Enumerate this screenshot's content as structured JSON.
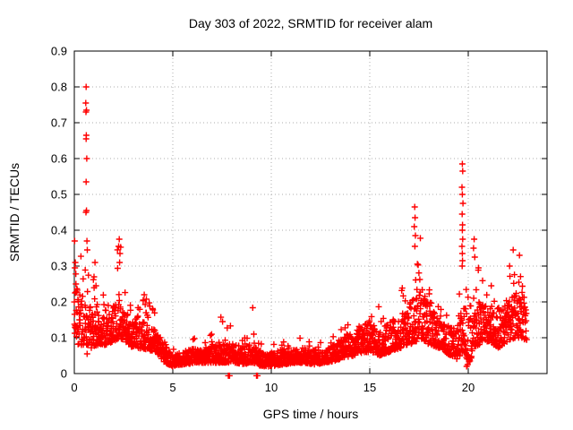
{
  "title": "Day 303 of 2022, SRMTID for receiver alam",
  "axes": {
    "xlabel": "GPS time / hours",
    "ylabel": "SRMTID / TECUs",
    "x_ticks": [
      [
        0,
        "0"
      ],
      [
        5,
        "5"
      ],
      [
        10,
        "10"
      ],
      [
        15,
        "15"
      ],
      [
        20,
        "20"
      ]
    ],
    "y_ticks": [
      [
        0,
        "0"
      ],
      [
        0.1,
        "0.1"
      ],
      [
        0.2,
        "0.2"
      ],
      [
        0.3,
        "0.3"
      ],
      [
        0.4,
        "0.4"
      ],
      [
        0.5,
        "0.5"
      ],
      [
        0.6,
        "0.6"
      ],
      [
        0.7,
        "0.7"
      ],
      [
        0.8,
        "0.8"
      ],
      [
        0.9,
        "0.9"
      ]
    ],
    "x_range": [
      0,
      24
    ],
    "y_range": [
      0,
      0.9
    ]
  },
  "colors": {
    "marker": "#ff0000",
    "grid": "#adadad",
    "frame": "#000000",
    "text": "#000000",
    "background": "#ffffff"
  },
  "chart_data": {
    "type": "scatter",
    "title": "Day 303 of 2022, SRMTID for receiver alam",
    "xlabel": "GPS time / hours",
    "ylabel": "SRMTID / TECUs",
    "xlim": [
      0,
      24
    ],
    "ylim": [
      0,
      0.9
    ],
    "grid": true,
    "grid_style": "dotted",
    "legend": "none",
    "marker": "plus",
    "marker_size_px": 7,
    "series_color": "#ff0000",
    "n_points": 2400,
    "x_start": 0,
    "x_end": 22.97,
    "seed": 303,
    "tail_fraction": 0.08,
    "envelope_note": "columns: [hour, typical_low, typical_high, peak] read from plot; dense band lies mostly in [low,high], occasional excursions up to peak",
    "envelope": [
      [
        0.0,
        0.08,
        0.25,
        0.37
      ],
      [
        0.4,
        0.08,
        0.21,
        0.33
      ],
      [
        0.8,
        0.07,
        0.19,
        0.3
      ],
      [
        1.2,
        0.08,
        0.17,
        0.25
      ],
      [
        1.6,
        0.08,
        0.15,
        0.22
      ],
      [
        2.0,
        0.09,
        0.19,
        0.3
      ],
      [
        2.3,
        0.1,
        0.22,
        0.38
      ],
      [
        2.6,
        0.09,
        0.17,
        0.27
      ],
      [
        3.0,
        0.07,
        0.14,
        0.2
      ],
      [
        3.5,
        0.07,
        0.15,
        0.22
      ],
      [
        4.1,
        0.06,
        0.12,
        0.175
      ],
      [
        4.6,
        0.03,
        0.08,
        0.11
      ],
      [
        5.0,
        0.02,
        0.05,
        0.07
      ],
      [
        5.5,
        0.025,
        0.06,
        0.1
      ],
      [
        6.2,
        0.03,
        0.07,
        0.13
      ],
      [
        6.6,
        0.03,
        0.06,
        0.1
      ],
      [
        7.1,
        0.03,
        0.08,
        0.15
      ],
      [
        7.7,
        0.03,
        0.08,
        0.165
      ],
      [
        8.2,
        0.03,
        0.08,
        0.12
      ],
      [
        8.7,
        0.025,
        0.07,
        0.1
      ],
      [
        9.1,
        0.03,
        0.09,
        0.2
      ],
      [
        9.5,
        0.02,
        0.06,
        0.09
      ],
      [
        10.0,
        0.02,
        0.055,
        0.08
      ],
      [
        10.6,
        0.025,
        0.06,
        0.09
      ],
      [
        11.2,
        0.03,
        0.065,
        0.1
      ],
      [
        11.7,
        0.03,
        0.07,
        0.11
      ],
      [
        12.2,
        0.025,
        0.065,
        0.115
      ],
      [
        12.7,
        0.03,
        0.06,
        0.1
      ],
      [
        13.2,
        0.035,
        0.08,
        0.12
      ],
      [
        13.7,
        0.045,
        0.1,
        0.14
      ],
      [
        14.2,
        0.05,
        0.12,
        0.19
      ],
      [
        14.7,
        0.06,
        0.14,
        0.23
      ],
      [
        15.1,
        0.06,
        0.15,
        0.25
      ],
      [
        15.5,
        0.05,
        0.12,
        0.18
      ],
      [
        16.0,
        0.06,
        0.14,
        0.22
      ],
      [
        16.5,
        0.07,
        0.16,
        0.23
      ],
      [
        17.0,
        0.08,
        0.18,
        0.31
      ],
      [
        17.35,
        0.09,
        0.24,
        0.4
      ],
      [
        17.7,
        0.09,
        0.25,
        0.38
      ],
      [
        18.1,
        0.08,
        0.19,
        0.28
      ],
      [
        18.6,
        0.07,
        0.15,
        0.21
      ],
      [
        19.1,
        0.05,
        0.13,
        0.19
      ],
      [
        19.45,
        0.04,
        0.12,
        0.18
      ],
      [
        19.75,
        0.06,
        0.2,
        0.33
      ],
      [
        20.05,
        0.03,
        0.14,
        0.24
      ],
      [
        20.35,
        0.07,
        0.21,
        0.33
      ],
      [
        20.75,
        0.09,
        0.2,
        0.27
      ],
      [
        21.1,
        0.09,
        0.18,
        0.26
      ],
      [
        21.5,
        0.07,
        0.16,
        0.24
      ],
      [
        22.0,
        0.09,
        0.2,
        0.3
      ],
      [
        22.4,
        0.1,
        0.23,
        0.33
      ],
      [
        22.75,
        0.1,
        0.22,
        0.31
      ],
      [
        22.97,
        0.09,
        0.19,
        0.27
      ]
    ],
    "outliers_note": "notable individual points read from plot as [hour, TECUs]",
    "outliers": [
      [
        0.6,
        0.8
      ],
      [
        0.58,
        0.755
      ],
      [
        0.62,
        0.735
      ],
      [
        0.59,
        0.73
      ],
      [
        0.61,
        0.665
      ],
      [
        0.6,
        0.655
      ],
      [
        0.63,
        0.6
      ],
      [
        0.6,
        0.535
      ],
      [
        0.62,
        0.455
      ],
      [
        0.59,
        0.45
      ],
      [
        0.64,
        0.37
      ],
      [
        0.66,
        0.345
      ],
      [
        0.65,
        0.055
      ],
      [
        0.02,
        0.37
      ],
      [
        0.05,
        0.31
      ],
      [
        0.03,
        0.295
      ],
      [
        0.08,
        0.25
      ],
      [
        0.04,
        0.225
      ],
      [
        1.05,
        0.31
      ],
      [
        1.0,
        0.27
      ],
      [
        1.1,
        0.245
      ],
      [
        2.28,
        0.375
      ],
      [
        2.25,
        0.355
      ],
      [
        2.32,
        0.335
      ],
      [
        2.3,
        0.31
      ],
      [
        3.55,
        0.22
      ],
      [
        3.5,
        0.205
      ],
      [
        17.28,
        0.465
      ],
      [
        17.3,
        0.435
      ],
      [
        17.26,
        0.41
      ],
      [
        17.32,
        0.385
      ],
      [
        17.29,
        0.355
      ],
      [
        19.7,
        0.585
      ],
      [
        19.72,
        0.565
      ],
      [
        19.68,
        0.52
      ],
      [
        19.7,
        0.5
      ],
      [
        19.73,
        0.475
      ],
      [
        19.69,
        0.445
      ],
      [
        19.71,
        0.415
      ],
      [
        19.7,
        0.4
      ],
      [
        19.72,
        0.375
      ],
      [
        19.68,
        0.355
      ],
      [
        19.7,
        0.335
      ],
      [
        19.71,
        0.315
      ],
      [
        19.69,
        0.3
      ],
      [
        19.92,
        0.02
      ],
      [
        19.97,
        0.025
      ],
      [
        20.3,
        0.375
      ],
      [
        20.27,
        0.35
      ],
      [
        20.33,
        0.325
      ],
      [
        22.1,
        0.3
      ],
      [
        22.28,
        0.345
      ],
      [
        22.6,
        0.33
      ],
      [
        7.82,
        -0.006
      ],
      [
        7.88,
        -0.006
      ],
      [
        9.25,
        -0.006
      ],
      [
        9.3,
        -0.006
      ]
    ]
  }
}
